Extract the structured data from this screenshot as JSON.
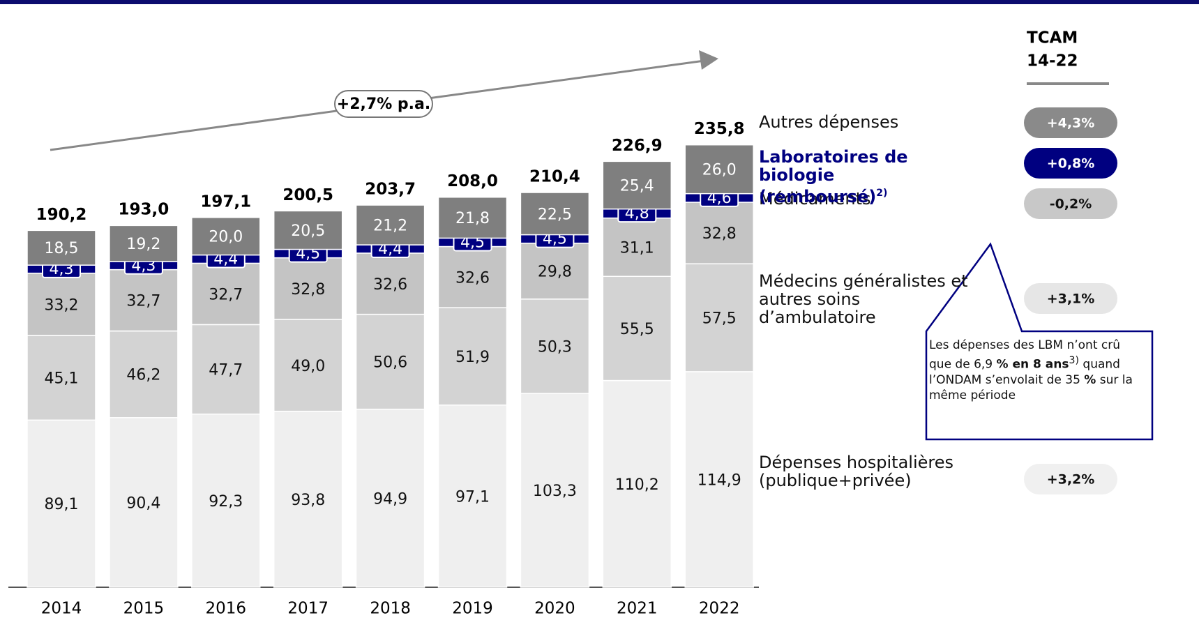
{
  "chart_data": {
    "type": "stacked_bar",
    "categories": [
      "2014",
      "2015",
      "2016",
      "2017",
      "2018",
      "2019",
      "2020",
      "2021",
      "2022"
    ],
    "series": [
      {
        "name": "Dépenses hospitalières (publique+privée)",
        "color": "#efefef",
        "values": [
          89.1,
          90.4,
          92.3,
          93.8,
          94.9,
          97.1,
          103.3,
          110.2,
          114.9
        ],
        "value_labels": [
          "89,1",
          "90,4",
          "92,3",
          "93,8",
          "94,9",
          "97,1",
          "103,3",
          "110,2",
          "114,9"
        ],
        "cagr": 3.2,
        "cagr_label": "+3,2%"
      },
      {
        "name": "Médecins généralistes et autres soins d’ambulatoire",
        "color": "#d3d3d3",
        "values": [
          45.1,
          46.2,
          47.7,
          49.0,
          50.6,
          51.9,
          50.3,
          55.5,
          57.5
        ],
        "value_labels": [
          "45,1",
          "46,2",
          "47,7",
          "49,0",
          "50,6",
          "51,9",
          "50,3",
          "55,5",
          "57,5"
        ],
        "cagr": 3.1,
        "cagr_label": "+3,1%"
      },
      {
        "name": "Médicaments",
        "color": "#c4c4c4",
        "values": [
          33.2,
          32.7,
          32.7,
          32.8,
          32.6,
          32.6,
          29.8,
          31.1,
          32.8
        ],
        "value_labels": [
          "33,2",
          "32,7",
          "32,7",
          "32,8",
          "32,6",
          "32,6",
          "29,8",
          "31,1",
          "32,8"
        ],
        "cagr": -0.2,
        "cagr_label": "-0,2%"
      },
      {
        "name": "Laboratoires de biologie (remboursé)",
        "note": "2)",
        "color": "#000080",
        "values": [
          4.3,
          4.3,
          4.4,
          4.5,
          4.4,
          4.5,
          4.5,
          4.8,
          4.6
        ],
        "value_labels": [
          "4,3",
          "4,3",
          "4,4",
          "4,5",
          "4,4",
          "4,5",
          "4,5",
          "4,8",
          "4,6"
        ],
        "cagr": 0.8,
        "cagr_label": "+0,8%"
      },
      {
        "name": "Autres dépenses",
        "color": "#7f7f7f",
        "values": [
          18.5,
          19.2,
          20.0,
          20.5,
          21.2,
          21.8,
          22.5,
          25.4,
          26.0
        ],
        "value_labels": [
          "18,5",
          "19,2",
          "20,0",
          "20,5",
          "21,2",
          "21,8",
          "22,5",
          "25,4",
          "26,0"
        ],
        "cagr": 4.3,
        "cagr_label": "+4,3%"
      }
    ],
    "totals": {
      "values": [
        190.2,
        193.0,
        197.1,
        200.5,
        203.7,
        208.0,
        210.4,
        226.9,
        235.8
      ],
      "value_labels": [
        "190,2",
        "193,0",
        "197,1",
        "200,5",
        "203,7",
        "208,0",
        "210,4",
        "226,9",
        "235,8"
      ]
    },
    "cagr_header": [
      "TCAM",
      "14-22"
    ],
    "trend_label": "+2,7% p.a.",
    "callout": [
      "Les dépenses des LBM n’ont crû que de 6,9 ",
      "% en 8 ans",
      "3)",
      " quand l’ONDAM s’envolait de 35 ",
      "%",
      " sur la même période"
    ]
  }
}
